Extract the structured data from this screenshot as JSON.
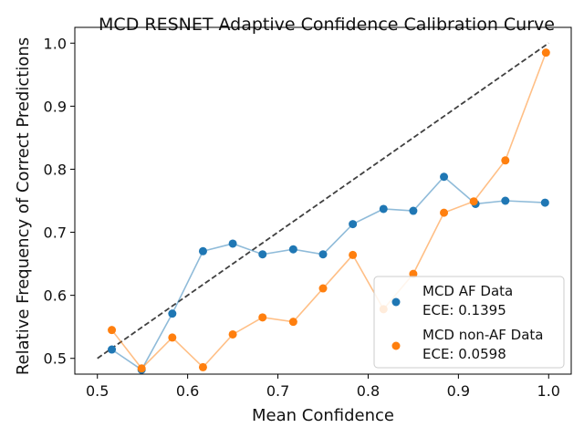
{
  "chart_data": {
    "type": "line",
    "title": "MCD RESNET Adaptive Confidence Calibration Curve",
    "xlabel": "Mean Confidence",
    "ylabel": "Relative Frequency of Correct Predictions",
    "xlim": [
      0.475,
      1.025
    ],
    "ylim": [
      0.475,
      1.025
    ],
    "x_ticks": [
      0.5,
      0.6,
      0.7,
      0.8,
      0.9,
      1.0
    ],
    "x_tick_labels": [
      "0.5",
      "0.6",
      "0.7",
      "0.8",
      "0.9",
      "1.0"
    ],
    "y_ticks": [
      0.5,
      0.6,
      0.7,
      0.8,
      0.9,
      1.0
    ],
    "y_tick_labels": [
      "0.5",
      "0.6",
      "0.7",
      "0.8",
      "0.9",
      "1.0"
    ],
    "grid": false,
    "legend_position": "lower-right",
    "reference_line": {
      "x": [
        0.5,
        1.0
      ],
      "y": [
        0.5,
        1.0
      ],
      "style": "dashed",
      "color": "#404040"
    },
    "series": [
      {
        "name": "MCD AF Data",
        "ece_label": "ECE: 0.1395",
        "color": "#1f77b4",
        "x": [
          0.516,
          0.549,
          0.583,
          0.617,
          0.65,
          0.683,
          0.717,
          0.75,
          0.783,
          0.817,
          0.85,
          0.884,
          0.919,
          0.952,
          0.996
        ],
        "y": [
          0.514,
          0.482,
          0.571,
          0.67,
          0.682,
          0.665,
          0.673,
          0.665,
          0.713,
          0.737,
          0.734,
          0.788,
          0.745,
          0.75,
          0.747
        ]
      },
      {
        "name": "MCD non-AF Data",
        "ece_label": "ECE: 0.0598",
        "color": "#ff7f0e",
        "x": [
          0.516,
          0.549,
          0.583,
          0.617,
          0.65,
          0.683,
          0.717,
          0.75,
          0.783,
          0.817,
          0.85,
          0.884,
          0.917,
          0.952,
          0.997
        ],
        "y": [
          0.545,
          0.484,
          0.533,
          0.486,
          0.538,
          0.565,
          0.558,
          0.611,
          0.664,
          0.578,
          0.634,
          0.731,
          0.749,
          0.814,
          0.985
        ]
      }
    ]
  }
}
